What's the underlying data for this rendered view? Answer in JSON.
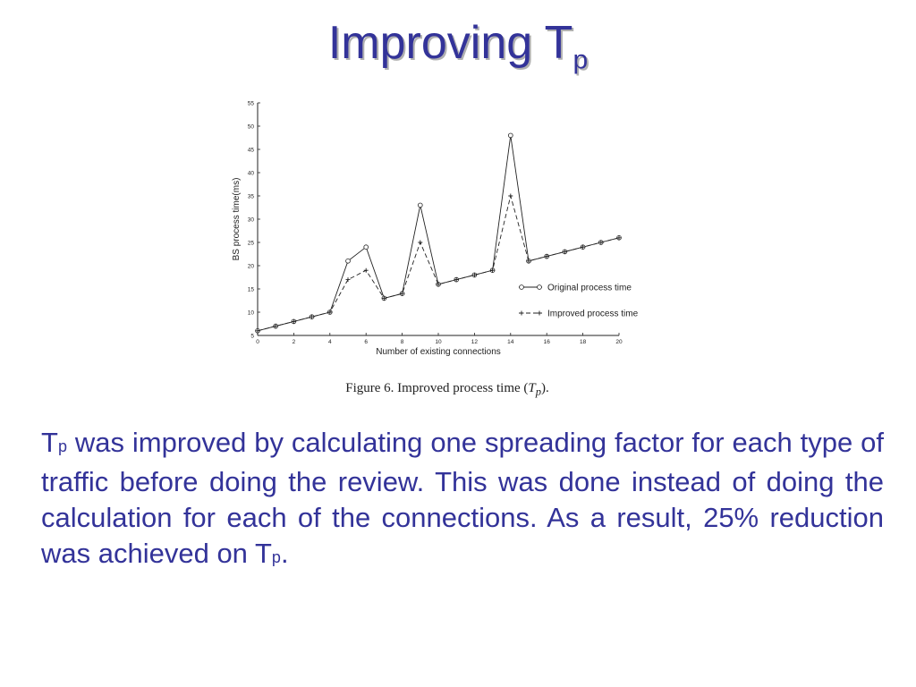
{
  "slide": {
    "title_main": "Improving T",
    "title_sub": "p",
    "caption_prefix": "Figure 6. Improved process time (",
    "caption_tp_main": "T",
    "caption_tp_sub": "p",
    "caption_suffix": ").",
    "body_t_main": "T",
    "body_t_sub": "p",
    "body_text_main": " was improved by calculating one spreading factor for each type of traffic before doing the review.  This was done instead of doing the calculation for each of the connections. As a result, 25% reduction was achieved on T",
    "body_end_sub": "p",
    "body_end": "."
  },
  "chart_data": {
    "type": "line",
    "xlabel": "Number of existing connections",
    "ylabel": "BS process time(ms)",
    "xlim": [
      0,
      20
    ],
    "ylim": [
      5,
      55
    ],
    "x_ticks": [
      0,
      2,
      4,
      6,
      8,
      10,
      12,
      14,
      16,
      18,
      20
    ],
    "y_ticks": [
      5,
      10,
      15,
      20,
      25,
      30,
      35,
      40,
      45,
      50,
      55
    ],
    "x": [
      0,
      1,
      2,
      3,
      4,
      5,
      6,
      7,
      8,
      9,
      10,
      11,
      12,
      13,
      14,
      15,
      16,
      17,
      18,
      19,
      20
    ],
    "series": [
      {
        "name": "Original process time",
        "style": "solid",
        "marker": "circle",
        "values": [
          6,
          7,
          8,
          9,
          10,
          21,
          24,
          13,
          14,
          33,
          16,
          17,
          18,
          19,
          48,
          21,
          22,
          23,
          24,
          25,
          26
        ]
      },
      {
        "name": "Improved process time",
        "style": "dashed",
        "marker": "plus",
        "values": [
          6,
          7,
          8,
          9,
          10,
          17,
          19,
          13,
          14,
          25,
          16,
          17,
          18,
          19,
          35,
          21,
          22,
          23,
          24,
          25,
          26
        ]
      }
    ],
    "legend_position": "right",
    "grid": false
  }
}
